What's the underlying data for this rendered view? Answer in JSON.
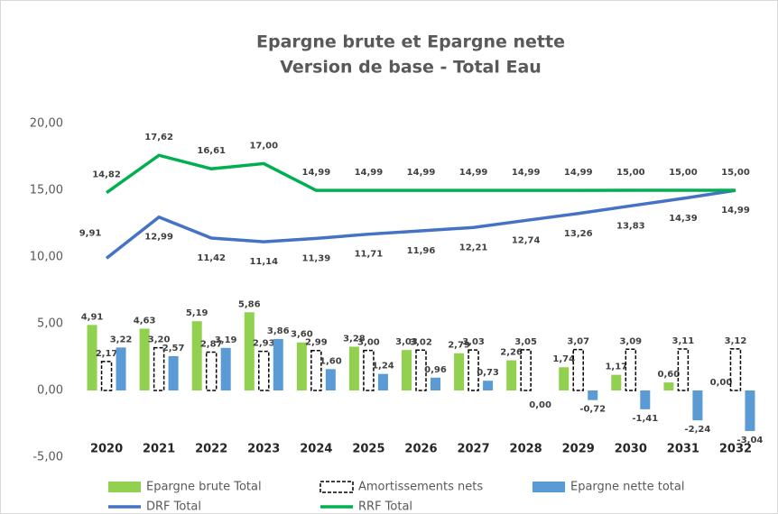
{
  "chart_data": {
    "type": "combo",
    "title": "Epargne brute et Epargne nette",
    "subtitle": "Version de base - Total Eau",
    "categories": [
      "2020",
      "2021",
      "2022",
      "2023",
      "2024",
      "2025",
      "2026",
      "2027",
      "2028",
      "2029",
      "2030",
      "2031",
      "2032"
    ],
    "ylim": [
      -5,
      20
    ],
    "yticks": [
      {
        "value": -5,
        "label": "-5,00"
      },
      {
        "value": 0,
        "label": "0,00"
      },
      {
        "value": 5,
        "label": "5,00"
      },
      {
        "value": 10,
        "label": "10,00"
      },
      {
        "value": 15,
        "label": "15,00"
      },
      {
        "value": 20,
        "label": "20,00"
      }
    ],
    "series": [
      {
        "name": "Epargne brute Total",
        "type": "bar",
        "color": "#92d050",
        "values": [
          4.91,
          4.63,
          5.19,
          5.86,
          3.6,
          3.28,
          3.03,
          2.79,
          2.26,
          1.74,
          1.17,
          0.6,
          0.0
        ],
        "value_labels": [
          "4,91",
          "4,63",
          "5,19",
          "5,86",
          "3,60",
          "3,28",
          "3,03",
          "2,79",
          "2,26",
          "1,74",
          "1,17",
          "0,60",
          "0,00"
        ]
      },
      {
        "name": "Amortissements nets",
        "type": "bar",
        "color": "#000000",
        "dashed": true,
        "values": [
          2.17,
          3.2,
          2.87,
          2.93,
          2.99,
          3.0,
          3.02,
          3.03,
          3.05,
          3.07,
          3.09,
          3.11,
          3.12
        ],
        "value_labels": [
          "2,17",
          "3,20",
          "2,87",
          "2,93",
          "2,99",
          "3,00",
          "3,02",
          "3,03",
          "3,05",
          "3,07",
          "3,09",
          "3,11",
          "3,12"
        ]
      },
      {
        "name": "Epargne nette total",
        "type": "bar",
        "color": "#5b9bd5",
        "values": [
          3.22,
          2.57,
          3.19,
          3.86,
          1.6,
          1.24,
          0.96,
          0.73,
          0.0,
          -0.72,
          -1.41,
          -2.24,
          -3.04
        ],
        "value_labels": [
          "3,22",
          "2,57",
          "3,19",
          "3,86",
          "1,60",
          "1,24",
          "0,96",
          "0,73",
          "0,00",
          "-0,72",
          "-1,41",
          "-2,24",
          "-3,04"
        ]
      },
      {
        "name": "DRF Total",
        "type": "line",
        "color": "#4472c4",
        "values": [
          9.91,
          12.99,
          11.42,
          11.14,
          11.39,
          11.71,
          11.96,
          12.21,
          12.74,
          13.26,
          13.83,
          14.39,
          14.99
        ],
        "value_labels": [
          "9,91",
          "12,99",
          "11,42",
          "11,14",
          "11,39",
          "11,71",
          "11,96",
          "12,21",
          "12,74",
          "13,26",
          "13,83",
          "14,39",
          "14,99"
        ]
      },
      {
        "name": "RRF Total",
        "type": "line",
        "color": "#00b050",
        "values": [
          14.82,
          17.62,
          16.61,
          17.0,
          14.99,
          14.99,
          14.99,
          14.99,
          14.99,
          14.99,
          15.0,
          15.0,
          15.0
        ],
        "value_labels": [
          "14,82",
          "17,62",
          "16,61",
          "17,00",
          "14,99",
          "14,99",
          "14,99",
          "14,99",
          "14,99",
          "14,99",
          "15,00",
          "15,00",
          "15,00"
        ]
      }
    ]
  }
}
